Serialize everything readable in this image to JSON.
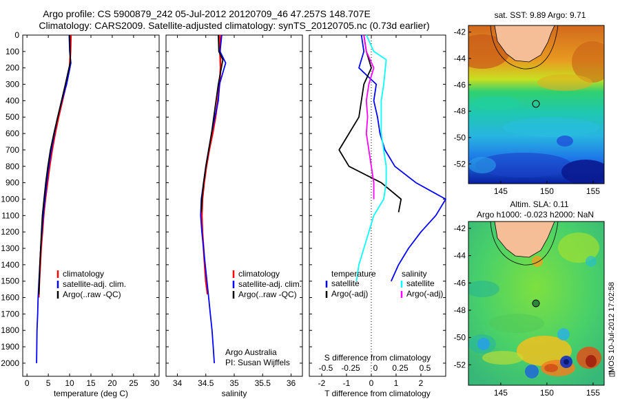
{
  "titles": {
    "line1": "Argo profile: CS 5900879_242 05-Jul-2012 20120709_46 47.257S 148.707E",
    "line2": "Climatology: CARS2009. Satellite-adjusted climatology: synTS_20120705.nc (0.73d earlier)"
  },
  "colors": {
    "climatology": "#ff0000",
    "satellite": "#0000ff",
    "argo": "#000000",
    "salinity_satellite": "#00ffff",
    "salinity_argo": "#ff00ff",
    "land": "#f5be96"
  },
  "chart_data": [
    {
      "id": "temperature",
      "type": "line",
      "xlabel": "temperature (deg C)",
      "ylabel": "",
      "xlim": [
        -1,
        31
      ],
      "ylim": [
        2080,
        0
      ],
      "xticks": [
        "0",
        "5",
        "10",
        "15",
        "20",
        "25",
        "30"
      ],
      "xtick_values": [
        0,
        5,
        10,
        15,
        20,
        25,
        30
      ],
      "yticks": [
        "0",
        "100",
        "200",
        "300",
        "400",
        "500",
        "600",
        "700",
        "800",
        "900",
        "1000",
        "1100",
        "1200",
        "1300",
        "1400",
        "1500",
        "1600",
        "1700",
        "1800",
        "1900",
        "2000"
      ],
      "ytick_values": [
        0,
        100,
        200,
        300,
        400,
        500,
        600,
        700,
        800,
        900,
        1000,
        1100,
        1200,
        1300,
        1400,
        1500,
        1600,
        1700,
        1800,
        1900,
        2000
      ],
      "series": [
        {
          "name": "climatology",
          "color": "#ff0000",
          "width": 2.5,
          "x": [
            10.3,
            10.2,
            10.0,
            9.2,
            8.3,
            7.4,
            6.6,
            5.9,
            5.3,
            4.8,
            4.3,
            3.9,
            3.6,
            3.3,
            3.1,
            2.9,
            2.75
          ],
          "y": [
            0,
            100,
            200,
            300,
            400,
            500,
            600,
            700,
            800,
            900,
            1000,
            1100,
            1200,
            1300,
            1400,
            1500,
            1600
          ]
        },
        {
          "name": "satellite-adj. clim.",
          "color": "#0000ff",
          "width": 1.8,
          "x": [
            9.9,
            10.0,
            10.3,
            9.3,
            8.2,
            7.2,
            6.4,
            5.7,
            5.1,
            4.6,
            4.2,
            3.8,
            3.5,
            3.2,
            3.0,
            2.8,
            2.6,
            2.5,
            2.35,
            2.3,
            2.25
          ],
          "y": [
            0,
            100,
            170,
            300,
            400,
            500,
            600,
            700,
            800,
            900,
            1000,
            1100,
            1200,
            1300,
            1400,
            1500,
            1600,
            1700,
            1800,
            1900,
            2000
          ]
        },
        {
          "name": "Argo(..raw -QC)",
          "color": "#000000",
          "width": 1.8,
          "x": [
            10.0,
            10.1,
            10.2,
            9.0,
            8.1,
            7.2,
            6.3,
            5.5,
            4.9,
            4.4,
            4.0,
            3.6,
            3.4,
            3.2,
            3.0,
            2.9,
            2.8
          ],
          "y": [
            0,
            100,
            160,
            300,
            400,
            500,
            600,
            700,
            800,
            900,
            1000,
            1100,
            1200,
            1300,
            1400,
            1500,
            1580
          ]
        }
      ],
      "legend": {
        "placement": "lower-right",
        "entries": [
          "climatology",
          "satellite-adj. clim.",
          "Argo(..raw -QC)"
        ]
      }
    },
    {
      "id": "salinity",
      "type": "line",
      "xlabel": "salinity",
      "xlim": [
        33.8,
        36.2
      ],
      "ylim": [
        2080,
        0
      ],
      "xticks": [
        "34",
        "34.5",
        "35",
        "35.5",
        "36"
      ],
      "xtick_values": [
        34,
        34.5,
        35,
        35.5,
        36
      ],
      "series": [
        {
          "name": "climatology",
          "color": "#ff0000",
          "width": 2.5,
          "x": [
            34.75,
            34.75,
            34.76,
            34.74,
            34.71,
            34.67,
            34.62,
            34.56,
            34.51,
            34.47,
            34.44,
            34.43,
            34.44,
            34.46,
            34.48,
            34.5,
            34.52,
            34.53
          ],
          "y": [
            0,
            100,
            200,
            300,
            400,
            500,
            600,
            700,
            800,
            900,
            1000,
            1100,
            1200,
            1300,
            1400,
            1500,
            1550,
            1580
          ]
        },
        {
          "name": "satellite-adj. clim.",
          "color": "#0000ff",
          "width": 1.8,
          "x": [
            34.78,
            34.75,
            34.85,
            34.74,
            34.72,
            34.66,
            34.6,
            34.55,
            34.5,
            34.46,
            34.42,
            34.41,
            34.43,
            34.46,
            34.49,
            34.52,
            34.55,
            34.58,
            34.61,
            34.63,
            34.65
          ],
          "y": [
            0,
            100,
            170,
            300,
            400,
            500,
            600,
            700,
            800,
            900,
            1000,
            1100,
            1200,
            1300,
            1400,
            1500,
            1600,
            1700,
            1800,
            1900,
            2000
          ]
        },
        {
          "name": "Argo(..raw -QC)",
          "color": "#000000",
          "width": 1.8,
          "x": [
            34.72,
            34.73,
            34.8,
            34.72,
            34.68,
            34.64,
            34.6,
            34.55,
            34.5,
            34.46,
            34.43,
            34.42
          ],
          "y": [
            0,
            100,
            150,
            300,
            400,
            500,
            600,
            700,
            800,
            900,
            1000,
            1080
          ]
        }
      ],
      "legend": {
        "placement": "lower-right",
        "entries": [
          "climatology",
          "satellite-adj. clim.",
          "Argo(..raw -QC)"
        ]
      },
      "annotation_lines": [
        "Argo Australia",
        "PI: Susan Wijffels"
      ]
    },
    {
      "id": "difference",
      "type": "line",
      "xlabel": "T difference from climatology",
      "xlabel_top": "S difference from climatology",
      "xlim": [
        -2.5,
        3.0
      ],
      "ylim": [
        2080,
        0
      ],
      "xticks": [
        "-2",
        "-1",
        "0",
        "1",
        "2"
      ],
      "xtick_values": [
        -2,
        -1,
        0,
        1,
        2
      ],
      "xticks_top": [
        "-0.5",
        "-0.25",
        "0",
        "0.25",
        "0.5"
      ],
      "xtick_top_values": [
        -2,
        -1,
        0,
        1,
        2
      ],
      "series": [
        {
          "name": "temperature satellite",
          "color": "#0000ff",
          "width": 1.8,
          "x": [
            -0.4,
            -0.3,
            -0.5,
            0.2,
            0.1,
            0.25,
            0.35,
            0.55,
            0.95,
            1.8,
            3.0,
            2.6,
            2.0,
            1.5,
            1.1,
            0.8
          ],
          "y": [
            0,
            100,
            200,
            300,
            400,
            500,
            600,
            700,
            800,
            900,
            1000,
            1100,
            1200,
            1300,
            1400,
            1500
          ]
        },
        {
          "name": "temperature Argo(-adj)",
          "color": "#000000",
          "width": 1.8,
          "x": [
            -0.3,
            -0.2,
            0.0,
            -0.3,
            -0.4,
            -0.5,
            -0.9,
            -1.3,
            -0.9,
            0.4,
            1.2,
            1.1
          ],
          "y": [
            0,
            100,
            200,
            300,
            400,
            500,
            600,
            700,
            800,
            900,
            1000,
            1080
          ]
        },
        {
          "name": "salinity satellite",
          "color": "#00ffff",
          "width": 1.8,
          "x": [
            -0.2,
            0.1,
            0.6,
            0.5,
            0.4,
            0.4,
            0.4,
            0.5,
            0.6,
            0.6,
            0.5,
            0.1,
            -0.1,
            -0.3,
            -0.5,
            -0.6
          ],
          "y": [
            0,
            100,
            150,
            300,
            400,
            500,
            600,
            700,
            800,
            900,
            1000,
            1100,
            1200,
            1300,
            1400,
            1500
          ]
        },
        {
          "name": "salinity Argo(-adj)",
          "color": "#ff00ff",
          "width": 1.8,
          "x": [
            -0.3,
            -0.2,
            0.1,
            -0.1,
            -0.2,
            -0.15,
            -0.2,
            -0.1,
            0.0,
            0.1,
            0.1
          ],
          "y": [
            0,
            100,
            200,
            300,
            400,
            500,
            600,
            700,
            800,
            900,
            1000
          ]
        }
      ],
      "legend": {
        "placement": "lower-center",
        "headers": [
          "temperature",
          "salinity"
        ],
        "entries": [
          "satellite",
          "Argo(-adj)",
          "satellite",
          "Argo(-adj)"
        ]
      }
    },
    {
      "id": "sst-map",
      "type": "heatmap",
      "title": "sat. SST: 9.89  Argo: 9.71",
      "xticks": [
        "145",
        "150",
        "155"
      ],
      "xtick_values": [
        145,
        150,
        155
      ],
      "yticks": [
        "-42",
        "-44",
        "-46",
        "-48",
        "-50",
        "-52"
      ],
      "ytick_values": [
        -42,
        -44,
        -46,
        -48,
        -50,
        -52
      ],
      "xlim": [
        141.5,
        156.2
      ],
      "ylim": [
        -53.5,
        -41.5
      ],
      "marker": {
        "lon": 148.7,
        "lat": -47.26
      }
    },
    {
      "id": "sla-map",
      "type": "heatmap",
      "title_lines": [
        "Altim. SLA: 0.11",
        "Argo h1000: -0.023  h2000: NaN"
      ],
      "xticks": [
        "145",
        "150",
        "155"
      ],
      "xtick_values": [
        145,
        150,
        155
      ],
      "yticks": [
        "-42",
        "-44",
        "-46",
        "-48",
        "-50",
        "-52"
      ],
      "ytick_values": [
        -42,
        -44,
        -46,
        -48,
        -50,
        -52
      ],
      "xlim": [
        141.5,
        156.2
      ],
      "ylim": [
        -53.5,
        -41.5
      ],
      "marker": {
        "lon": 148.7,
        "lat": -47.26
      }
    }
  ],
  "stamp": "IMOS 10-Jul-2012 17:02:58"
}
